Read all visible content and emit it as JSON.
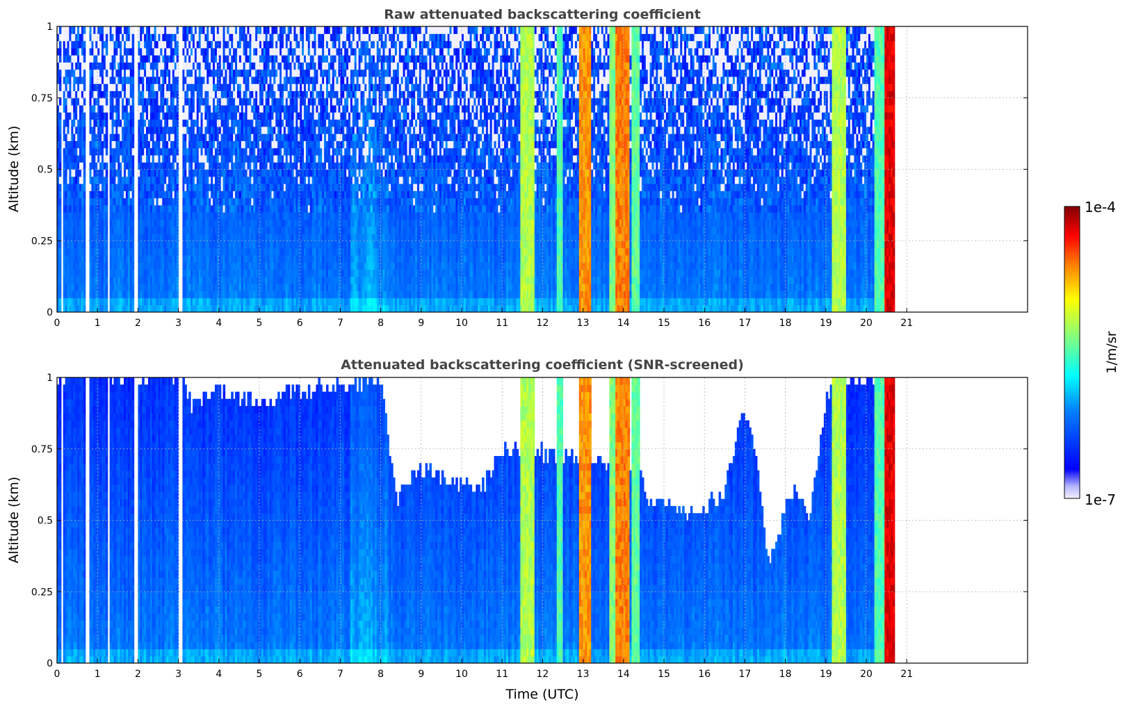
{
  "chart_data": [
    {
      "type": "heatmap",
      "title": "Raw attenuated backscattering coefficient",
      "xlabel": "",
      "ylabel": "Altitude (km)",
      "xlim": [
        0,
        24
      ],
      "ylim": [
        0,
        1
      ],
      "x_ticks": [
        "0",
        "1",
        "2",
        "3",
        "4",
        "5",
        "6",
        "7",
        "8",
        "9",
        "10",
        "11",
        "12",
        "13",
        "14",
        "15",
        "16",
        "17",
        "18",
        "19",
        "20",
        "21"
      ],
      "y_ticks": [
        "0",
        "0.25",
        "0.5",
        "0.75",
        "1"
      ],
      "data_end_time": 20.7,
      "grid": true,
      "gaps": [
        [
          0.12,
          0.14
        ],
        [
          0.72,
          0.78
        ],
        [
          0.98,
          1.02
        ],
        [
          1.25,
          1.3
        ],
        [
          1.92,
          2.02
        ],
        [
          3.02,
          3.1
        ]
      ],
      "bands": [
        {
          "start": 11.45,
          "end": 11.8,
          "level": 0.6
        },
        {
          "start": 12.35,
          "end": 12.5,
          "level": 0.5
        },
        {
          "start": 12.9,
          "end": 13.2,
          "level": 0.78
        },
        {
          "start": 13.65,
          "end": 13.78,
          "level": 0.55
        },
        {
          "start": 13.82,
          "end": 14.15,
          "level": 0.8
        },
        {
          "start": 14.22,
          "end": 14.4,
          "level": 0.52
        },
        {
          "start": 19.15,
          "end": 19.5,
          "level": 0.6
        },
        {
          "start": 20.2,
          "end": 20.45,
          "level": 0.5
        },
        {
          "start": 20.45,
          "end": 20.7,
          "level": 0.92
        }
      ],
      "noise_above_km": 0.35
    },
    {
      "type": "heatmap",
      "title": "Attenuated backscattering coefficient (SNR-screened)",
      "xlabel": "Time (UTC)",
      "ylabel": "Altitude (km)",
      "xlim": [
        0,
        24
      ],
      "ylim": [
        0,
        1
      ],
      "x_ticks": [
        "0",
        "1",
        "2",
        "3",
        "4",
        "5",
        "6",
        "7",
        "8",
        "9",
        "10",
        "11",
        "12",
        "13",
        "14",
        "15",
        "16",
        "17",
        "18",
        "19",
        "20",
        "21"
      ],
      "y_ticks": [
        "0",
        "0.25",
        "0.5",
        "0.75",
        "1"
      ],
      "data_end_time": 20.7,
      "grid": true,
      "gaps": [
        [
          0.12,
          0.14
        ],
        [
          0.72,
          0.78
        ],
        [
          0.98,
          1.02
        ],
        [
          1.25,
          1.3
        ],
        [
          1.92,
          2.02
        ],
        [
          3.02,
          3.1
        ]
      ],
      "bands": [
        {
          "start": 11.45,
          "end": 11.8,
          "level": 0.6
        },
        {
          "start": 12.35,
          "end": 12.5,
          "level": 0.5
        },
        {
          "start": 12.9,
          "end": 13.2,
          "level": 0.78
        },
        {
          "start": 13.65,
          "end": 13.78,
          "level": 0.55
        },
        {
          "start": 13.82,
          "end": 14.15,
          "level": 0.8
        },
        {
          "start": 14.22,
          "end": 14.4,
          "level": 0.52
        },
        {
          "start": 19.15,
          "end": 19.5,
          "level": 0.6
        },
        {
          "start": 20.2,
          "end": 20.45,
          "level": 0.5
        },
        {
          "start": 20.45,
          "end": 20.7,
          "level": 0.92
        }
      ],
      "screen_boundary": [
        [
          0,
          1.0
        ],
        [
          3.1,
          1.0
        ],
        [
          3.3,
          0.9
        ],
        [
          4.0,
          0.95
        ],
        [
          5.0,
          0.92
        ],
        [
          6.0,
          0.95
        ],
        [
          7.0,
          0.97
        ],
        [
          8.0,
          0.98
        ],
        [
          8.4,
          0.58
        ],
        [
          9.0,
          0.68
        ],
        [
          10.0,
          0.62
        ],
        [
          10.5,
          0.62
        ],
        [
          11.0,
          0.75
        ],
        [
          11.45,
          0.75
        ],
        [
          14.4,
          0.68
        ],
        [
          14.6,
          0.55
        ],
        [
          15.0,
          0.58
        ],
        [
          15.5,
          0.52
        ],
        [
          16.0,
          0.55
        ],
        [
          16.5,
          0.6
        ],
        [
          17.0,
          0.9
        ],
        [
          17.3,
          0.7
        ],
        [
          17.6,
          0.35
        ],
        [
          17.8,
          0.45
        ],
        [
          18.2,
          0.62
        ],
        [
          18.6,
          0.5
        ],
        [
          18.9,
          0.82
        ],
        [
          19.15,
          1.0
        ],
        [
          20.7,
          1.0
        ]
      ]
    }
  ],
  "colorbar": {
    "label": "1/m/sr",
    "max_label": "1e-4",
    "min_label": "1e-7",
    "colormap": "jet",
    "scale": "log"
  }
}
